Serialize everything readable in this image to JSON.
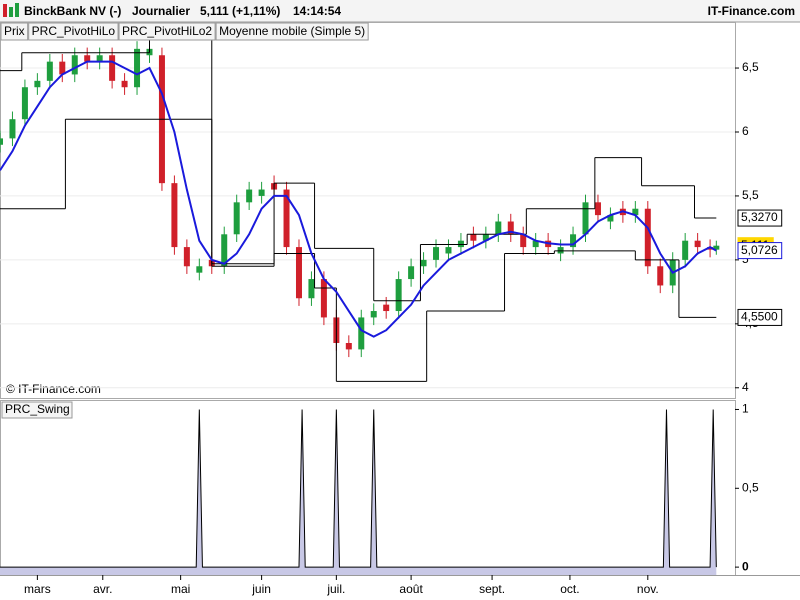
{
  "header": {
    "title": "BinckBank NV (-)",
    "period": "Journalier",
    "price": "5,111 (+1,11%)",
    "time": "14:14:54",
    "brand": "IT-Finance.com"
  },
  "chart_data": [
    {
      "type": "candlestick",
      "watermark": "© IT-Finance.com",
      "x": [
        0,
        4,
        8,
        12,
        16,
        20,
        24,
        28,
        32,
        36,
        40,
        44,
        48,
        52,
        56,
        60,
        64,
        68,
        72,
        76,
        80,
        84,
        88,
        92,
        96,
        100,
        104,
        108,
        112,
        116,
        120,
        124,
        128,
        132,
        136,
        140,
        144,
        148,
        152,
        156,
        160,
        164,
        168,
        172,
        176,
        180,
        184,
        188,
        192,
        196,
        200,
        204,
        208,
        212,
        216,
        220,
        224,
        228,
        230
      ],
      "xlim": [
        0,
        236
      ],
      "xticks": [
        {
          "value": 12,
          "label": "mars"
        },
        {
          "value": 33,
          "label": "avr."
        },
        {
          "value": 58,
          "label": "mai"
        },
        {
          "value": 84,
          "label": "juin"
        },
        {
          "value": 108,
          "label": "juil."
        },
        {
          "value": 132,
          "label": "août"
        },
        {
          "value": 158,
          "label": "sept."
        },
        {
          "value": 183,
          "label": "oct."
        },
        {
          "value": 208,
          "label": "nov."
        }
      ],
      "ylim": [
        3.92,
        6.86
      ],
      "yticks": [
        4,
        {
          "value": 4.5,
          "label": "4,5"
        },
        5,
        {
          "value": 5.5,
          "label": "5,5"
        },
        6,
        {
          "value": 6.5,
          "label": "6,5"
        }
      ],
      "grid": true,
      "series": [
        {
          "name": "Prix",
          "up_color": "#1e9e3e",
          "down_color": "#d0202a",
          "open": [
            5.9,
            5.95,
            6.1,
            6.35,
            6.4,
            6.55,
            6.45,
            6.6,
            6.55,
            6.6,
            6.4,
            6.35,
            6.6,
            6.6,
            5.6,
            5.1,
            4.9,
            5.0,
            4.95,
            5.2,
            5.45,
            5.5,
            5.6,
            5.55,
            5.1,
            4.7,
            4.85,
            4.55,
            4.35,
            4.3,
            4.55,
            4.65,
            4.6,
            4.85,
            4.95,
            5.0,
            5.05,
            5.1,
            5.2,
            5.15,
            5.2,
            5.3,
            5.2,
            5.1,
            5.15,
            5.05,
            5.1,
            5.2,
            5.45,
            5.3,
            5.4,
            5.35,
            5.4,
            4.95,
            4.8,
            5.0,
            5.15,
            5.1,
            5.08
          ],
          "high": [
            6.01,
            6.16,
            6.41,
            6.46,
            6.61,
            6.61,
            6.66,
            6.66,
            6.66,
            6.66,
            6.46,
            6.71,
            6.71,
            6.66,
            5.66,
            5.16,
            5.01,
            5.06,
            5.26,
            5.51,
            5.61,
            5.61,
            5.66,
            5.61,
            5.16,
            4.91,
            4.91,
            4.61,
            4.41,
            4.61,
            4.66,
            4.71,
            4.91,
            5.01,
            5.06,
            5.16,
            5.16,
            5.21,
            5.26,
            5.26,
            5.36,
            5.36,
            5.26,
            5.21,
            5.21,
            5.16,
            5.26,
            5.51,
            5.51,
            5.41,
            5.46,
            5.46,
            5.46,
            5.01,
            5.06,
            5.21,
            5.21,
            5.16,
            5.15
          ],
          "low": [
            5.84,
            5.89,
            6.04,
            6.29,
            6.34,
            6.39,
            6.39,
            6.49,
            6.49,
            6.34,
            6.29,
            6.29,
            6.54,
            5.54,
            5.04,
            4.89,
            4.84,
            4.89,
            4.89,
            5.14,
            5.39,
            5.44,
            5.49,
            5.04,
            4.64,
            4.64,
            4.49,
            4.29,
            4.24,
            4.24,
            4.49,
            4.54,
            4.54,
            4.79,
            4.89,
            4.94,
            4.99,
            5.04,
            5.09,
            5.09,
            5.14,
            5.14,
            5.04,
            5.04,
            5.04,
            4.99,
            5.04,
            5.14,
            5.29,
            5.24,
            5.29,
            5.29,
            4.89,
            4.74,
            4.74,
            4.94,
            5.04,
            5.02,
            5.04
          ],
          "close": [
            5.95,
            6.1,
            6.35,
            6.4,
            6.55,
            6.45,
            6.6,
            6.55,
            6.6,
            6.4,
            6.35,
            6.65,
            6.65,
            5.6,
            5.1,
            4.95,
            4.95,
            4.95,
            5.2,
            5.45,
            5.55,
            5.55,
            5.55,
            5.1,
            4.7,
            4.85,
            4.55,
            4.35,
            4.3,
            4.55,
            4.6,
            4.6,
            4.85,
            4.95,
            5.0,
            5.1,
            5.1,
            5.15,
            5.15,
            5.2,
            5.3,
            5.2,
            5.1,
            5.15,
            5.1,
            5.1,
            5.2,
            5.45,
            5.35,
            5.35,
            5.35,
            5.4,
            4.95,
            4.8,
            5.0,
            5.15,
            5.1,
            5.08,
            5.111
          ],
          "value_labels": [
            null,
            null,
            null,
            null,
            null,
            null,
            null,
            null,
            null,
            null,
            null,
            null,
            null,
            null,
            null,
            null,
            null,
            null,
            null,
            null,
            null,
            null,
            null,
            null,
            null,
            null,
            null,
            null,
            null,
            null,
            null,
            null,
            null,
            null,
            null,
            null,
            null,
            null,
            null,
            null,
            null,
            null,
            null,
            null,
            null,
            null,
            null,
            null,
            null,
            null,
            null,
            null,
            null,
            null,
            null,
            null,
            null,
            null,
            "5,111"
          ]
        },
        {
          "name": "PRC_PivotHiLo",
          "color": "#000000",
          "x": [
            0,
            7,
            48,
            68,
            88,
            101,
            120,
            135,
            150,
            169,
            191,
            206,
            223
          ],
          "values": [
            6.48,
            6.62,
            6.72,
            4.97,
            5.6,
            5.09,
            4.68,
            5.12,
            5.2,
            5.4,
            5.8,
            5.58,
            5.327
          ],
          "value_labels": [
            null,
            null,
            null,
            null,
            null,
            null,
            null,
            null,
            null,
            null,
            null,
            null,
            "5,3270"
          ]
        },
        {
          "name": "PRC_PivotHiLo2",
          "color": "#000000",
          "x": [
            0,
            21,
            68,
            88,
            101,
            108,
            137,
            162,
            178,
            204,
            218
          ],
          "values": [
            5.4,
            6.1,
            4.95,
            5.05,
            4.78,
            4.05,
            4.6,
            5.05,
            5.07,
            5.0,
            4.55
          ],
          "value_labels": [
            null,
            null,
            null,
            null,
            null,
            null,
            null,
            null,
            null,
            null,
            "4,5500"
          ]
        },
        {
          "name": "Moyenne mobile (Simple 5)",
          "color": "#1a1adc",
          "values": [
            5.7,
            5.85,
            6.05,
            6.2,
            6.35,
            6.45,
            6.5,
            6.55,
            6.55,
            6.55,
            6.5,
            6.45,
            6.5,
            6.3,
            6.0,
            5.55,
            5.15,
            5.0,
            4.97,
            5.05,
            5.2,
            5.4,
            5.5,
            5.5,
            5.35,
            5.05,
            4.85,
            4.75,
            4.6,
            4.45,
            4.4,
            4.45,
            4.55,
            4.65,
            4.8,
            4.9,
            5.0,
            5.05,
            5.1,
            5.15,
            5.2,
            5.22,
            5.2,
            5.15,
            5.13,
            5.12,
            5.12,
            5.2,
            5.3,
            5.35,
            5.38,
            5.35,
            5.25,
            5.05,
            4.9,
            4.95,
            5.05,
            5.1,
            5.0726
          ],
          "value_labels": [
            null,
            null,
            null,
            null,
            null,
            null,
            null,
            null,
            null,
            null,
            null,
            null,
            null,
            null,
            null,
            null,
            null,
            null,
            null,
            null,
            null,
            null,
            null,
            null,
            null,
            null,
            null,
            null,
            null,
            null,
            null,
            null,
            null,
            null,
            null,
            null,
            null,
            null,
            null,
            null,
            null,
            null,
            null,
            null,
            null,
            null,
            null,
            null,
            null,
            null,
            null,
            null,
            null,
            null,
            null,
            null,
            null,
            null,
            "5,0726"
          ]
        }
      ]
    },
    {
      "type": "area",
      "title": "PRC_Swing",
      "color": "#c8c8e6",
      "line_color": "#000000",
      "x": [
        0,
        63,
        64,
        65,
        96,
        97,
        98,
        107,
        108,
        109,
        119,
        120,
        121,
        213,
        214,
        215,
        228,
        229,
        230
      ],
      "values": [
        0,
        0,
        1,
        0,
        0,
        1,
        0,
        0,
        1,
        0,
        0,
        1,
        0,
        0,
        1,
        0,
        0,
        1,
        0
      ],
      "xlim": [
        0,
        236
      ],
      "ylim": [
        -0.05,
        1.06
      ],
      "yticks": [
        0,
        {
          "value": 0.5,
          "label": "0,5"
        },
        1
      ]
    }
  ]
}
